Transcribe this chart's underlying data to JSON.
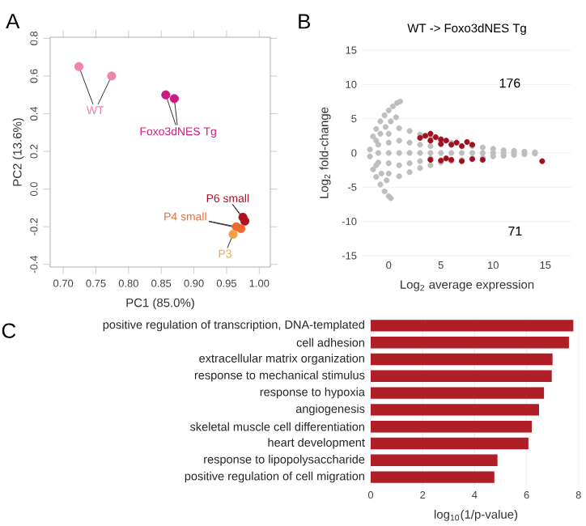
{
  "chart_data": [
    {
      "type": "scatter",
      "xlabel": "PC1 (85.0%)",
      "ylabel": "PC2 (13.6%)",
      "annotations": [
        "A"
      ],
      "marker": "circle",
      "xlim": [
        0.68,
        1.017
      ],
      "ylim": [
        -0.414,
        0.806
      ],
      "xticks": [
        {
          "value": 0.7,
          "label": "0.70"
        },
        {
          "value": 0.75,
          "label": "0.75"
        },
        {
          "value": 0.8,
          "label": "0.80"
        },
        {
          "value": 0.85,
          "label": "0.85"
        },
        {
          "value": 0.9,
          "label": "0.90"
        },
        {
          "value": 0.95,
          "label": "0.95"
        },
        {
          "value": 1.0,
          "label": "1.00"
        }
      ],
      "yticks": [
        {
          "value": -0.4,
          "label": "-0.4"
        },
        {
          "value": -0.2,
          "label": "-0.2"
        },
        {
          "value": 0.0,
          "label": "0.0"
        },
        {
          "value": 0.2,
          "label": "0.2"
        },
        {
          "value": 0.4,
          "label": "0.4"
        },
        {
          "value": 0.6,
          "label": "0.6"
        },
        {
          "value": 0.8,
          "label": "0.8"
        }
      ],
      "series": [
        {
          "name": "WT",
          "color": "#ee86a6",
          "x": [
            0.724,
            0.774
          ],
          "values": [
            0.65,
            0.6
          ]
        },
        {
          "name": "Foxo3dNES Tg",
          "color": "#cc1a80",
          "x": [
            0.857,
            0.87
          ],
          "values": [
            0.5,
            0.48
          ]
        },
        {
          "name": "P6 small",
          "color": "#b01020",
          "x": [
            0.975,
            0.978
          ],
          "values": [
            -0.15,
            -0.17
          ]
        },
        {
          "name": "P4 small",
          "color": "#f06a30",
          "x": [
            0.965,
            0.972
          ],
          "values": [
            -0.2,
            -0.21
          ]
        },
        {
          "name": "P3",
          "color": "#f5a040",
          "x": [
            0.96
          ],
          "values": [
            -0.24
          ]
        }
      ]
    },
    {
      "type": "scatter",
      "title": "WT -> Foxo3dNES Tg",
      "xlabel": "Log$_{2}$ average expression",
      "ylabel": "Log$_{2}$ fold-change",
      "annotations": [
        "B",
        "176",
        "71"
      ],
      "marker": "circle",
      "grid": "y",
      "xlim": [
        -2.5,
        17.5
      ],
      "ylim": [
        -15,
        15
      ],
      "xticks": [
        0,
        5,
        10,
        15
      ],
      "yticks": [
        -15,
        -10,
        -5,
        0,
        5,
        10,
        15
      ],
      "series": [
        {
          "color": "#bebebe",
          "x": [
            -1.5,
            -1.2,
            -0.8,
            -0.4,
            0,
            0.4,
            0.8,
            1.1,
            -1.2,
            -0.8,
            -0.3,
            0.2,
            0.7,
            -1.5,
            -1.2,
            -0.8,
            -0.4,
            0,
            0.2,
            -1.2,
            -0.7,
            -0.2,
            -1.8,
            -1,
            0,
            1,
            2,
            3,
            4,
            5,
            6,
            8,
            9,
            10,
            11,
            12,
            13,
            14,
            -1.8,
            -1,
            0,
            1,
            2,
            3,
            4,
            5,
            6,
            7,
            8,
            9,
            10,
            11,
            12,
            13,
            14,
            -1,
            0,
            1,
            2,
            3,
            4,
            5,
            6,
            7,
            8,
            9,
            10,
            11,
            12,
            0,
            1,
            2,
            3,
            4,
            0,
            1,
            2,
            3,
            4
          ],
          "values": [
            2.4,
            3.5,
            4.6,
            5.5,
            6.2,
            6.8,
            7.3,
            7.5,
            1.8,
            2.8,
            3.8,
            4.6,
            5.2,
            -2.4,
            -3.5,
            -4.6,
            -5.6,
            -6.3,
            -6.6,
            -1.8,
            -3,
            -4,
            0.5,
            1.2,
            2.8,
            3.6,
            3.2,
            2.7,
            2.2,
            1.8,
            1.5,
            1,
            0.8,
            0.6,
            0.4,
            0.3,
            0.2,
            0.1,
            -0.5,
            -1.4,
            -3,
            -3.4,
            -2.8,
            -2.2,
            -1.8,
            -1.4,
            -1.2,
            -1,
            -0.8,
            -0.7,
            -0.5,
            -0.4,
            -0.3,
            -0.2,
            -0.1,
            0,
            0,
            0,
            0,
            0,
            0,
            0,
            0,
            0,
            0,
            0,
            0,
            0,
            0,
            1.5,
            1.8,
            1.5,
            1.2,
            1,
            -1.5,
            -1.8,
            -1.5,
            -1.2,
            -0.8
          ]
        },
        {
          "color": "#a01020",
          "x": [
            3,
            3.5,
            4,
            4.5,
            5,
            5.5,
            6.5,
            7.5,
            8,
            4,
            5,
            6,
            7,
            4,
            5,
            6,
            7,
            8,
            9,
            5.5,
            14.7
          ],
          "values": [
            2.2,
            2.5,
            2.8,
            2.3,
            2,
            1.8,
            1.5,
            1.6,
            1.2,
            1.8,
            1.3,
            1.2,
            1,
            -1,
            -1.1,
            -1,
            -1.2,
            -0.9,
            -1,
            -0.8,
            -1.2
          ]
        }
      ]
    },
    {
      "type": "bar",
      "orientation": "horizontal",
      "xlabel": "log$_{10}$(1/p-value)",
      "annotations": [
        "C"
      ],
      "grid": "x",
      "color": "#b01e28",
      "xlim": [
        0,
        8.1
      ],
      "xticks": [
        0,
        2,
        4,
        6,
        8
      ],
      "categories": [
        "positive regulation of transcription, DNA-templated",
        "cell adhesion",
        "extracellular matrix organization",
        "response to mechanical stimulus",
        "response to hypoxia",
        "angiogenesis",
        "skeletal muscle cell differentiation",
        "heart development",
        "response to lipopolysaccharide",
        "positive regulation of cell migration"
      ],
      "values": [
        7.8,
        7.63,
        7.0,
        6.97,
        6.67,
        6.48,
        6.2,
        6.07,
        4.88,
        4.76
      ]
    }
  ]
}
